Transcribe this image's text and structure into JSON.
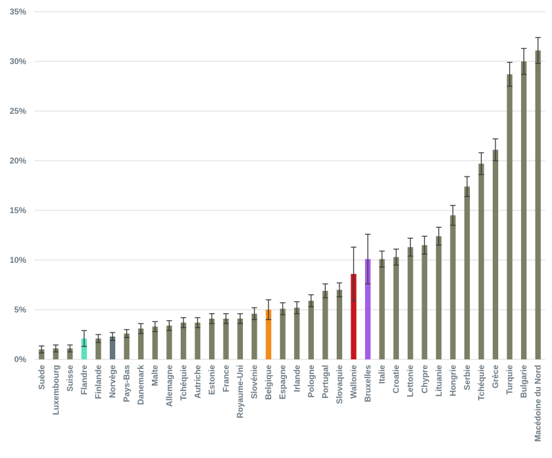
{
  "chart_data": {
    "type": "bar",
    "categories": [
      "Suède",
      "Luxembourg",
      "Suisse",
      "Flandre",
      "Finlande",
      "Norvège",
      "Pays-Bas",
      "Danemark",
      "Malte",
      "Allemagne",
      "Tchéquie",
      "Autriche",
      "Estonie",
      "France",
      "Royaume-Uni",
      "Slovénie",
      "Belgique",
      "Espagne",
      "Irlande",
      "Pologne",
      "Portugal",
      "Slovaquie",
      "Wallonie",
      "Bruxelles",
      "Italie",
      "Croatie",
      "Lettonie",
      "Chypre",
      "Lituanie",
      "Hongrie",
      "Serbie",
      "Tchéquie",
      "Grèce",
      "Turquie",
      "Bulgarie",
      "Macédoine du Nord"
    ],
    "values": [
      1.0,
      1.1,
      1.1,
      2.1,
      2.1,
      2.3,
      2.6,
      3.1,
      3.3,
      3.4,
      3.7,
      3.7,
      4.1,
      4.1,
      4.1,
      4.6,
      5.0,
      5.1,
      5.2,
      5.9,
      6.9,
      7.0,
      8.6,
      10.1,
      10.1,
      10.3,
      11.3,
      11.5,
      12.4,
      14.5,
      17.4,
      19.7,
      21.1,
      28.7,
      30.0,
      31.1
    ],
    "errors": [
      0.35,
      0.35,
      0.35,
      0.8,
      0.4,
      0.4,
      0.4,
      0.5,
      0.5,
      0.5,
      0.5,
      0.5,
      0.5,
      0.5,
      0.5,
      0.6,
      1.0,
      0.6,
      0.6,
      0.6,
      0.7,
      0.7,
      2.7,
      2.5,
      0.8,
      0.8,
      0.9,
      0.9,
      0.9,
      1.0,
      1.0,
      1.1,
      1.1,
      1.2,
      1.3,
      1.3
    ],
    "colors": [
      "#7c7f66",
      "#7c7f66",
      "#7c7f66",
      "#5ce0c0",
      "#7c7f66",
      "#66767f",
      "#7c7f66",
      "#7c7f66",
      "#7c7f66",
      "#7c7f66",
      "#7c7f66",
      "#7c7f66",
      "#7c7f66",
      "#7c7f66",
      "#7c7f66",
      "#7c7f66",
      "#f28c1c",
      "#7c7f66",
      "#7c7f66",
      "#7c7f66",
      "#7c7f66",
      "#7c7f66",
      "#c8161d",
      "#a35ee8",
      "#7c7f66",
      "#7c7f66",
      "#7c7f66",
      "#7c7f66",
      "#7c7f66",
      "#7c7f66",
      "#7c7f66",
      "#7c7f66",
      "#7c7f66",
      "#7c7f66",
      "#7c7f66",
      "#7c7f66"
    ],
    "error_color": "#3a3a3a",
    "ylim": [
      0,
      35
    ],
    "yticks": [
      {
        "value": 0,
        "label": "0%"
      },
      {
        "value": 5,
        "label": "5%"
      },
      {
        "value": 10,
        "label": "10%"
      },
      {
        "value": 15,
        "label": "15%"
      },
      {
        "value": 20,
        "label": "20%"
      },
      {
        "value": 25,
        "label": "25%"
      },
      {
        "value": 30,
        "label": "30%"
      },
      {
        "value": 35,
        "label": "35%"
      }
    ],
    "grid": true
  }
}
